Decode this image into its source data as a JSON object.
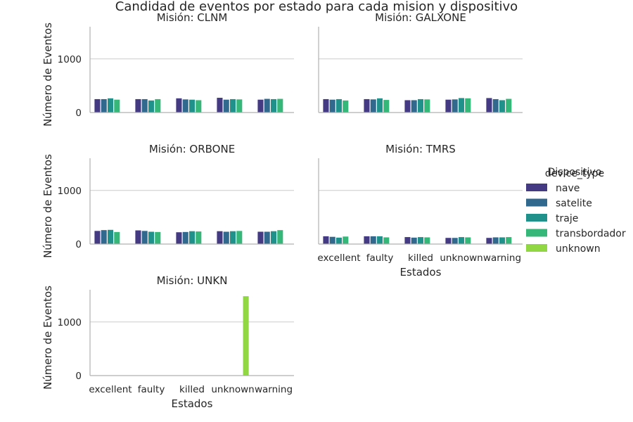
{
  "chart_data": {
    "type": "bar",
    "title": "Candidad de eventos por estado para cada mision y dispositivo",
    "xlabel": "Estados",
    "ylabel": "Número de Eventos",
    "categories": [
      "excellent",
      "faulty",
      "killed",
      "unknown",
      "warning"
    ],
    "ylim": [
      0,
      1600
    ],
    "yticks": [
      0,
      1000
    ],
    "grid": "horizontal",
    "legend": {
      "title": "Dispositivo",
      "overlap_title": "device_type",
      "placement": "right",
      "entries": [
        "nave",
        "satelite",
        "traje",
        "transbordador",
        "unknown"
      ]
    },
    "colors": {
      "nave": "#443983",
      "satelite": "#31688e",
      "traje": "#21918c",
      "transbordador": "#35b779",
      "unknown": "#90d743"
    },
    "panels": [
      {
        "title": "Misión: CLNM",
        "series": [
          {
            "name": "nave",
            "values": [
              250,
              250,
              265,
              275,
              240
            ]
          },
          {
            "name": "satelite",
            "values": [
              250,
              250,
              245,
              240,
              255
            ]
          },
          {
            "name": "traje",
            "values": [
              265,
              225,
              240,
              250,
              250
            ]
          },
          {
            "name": "transbordador",
            "values": [
              240,
              250,
              230,
              245,
              255
            ]
          },
          {
            "name": "unknown",
            "values": [
              0,
              0,
              0,
              0,
              0
            ]
          }
        ]
      },
      {
        "title": "Misión: GALXONE",
        "series": [
          {
            "name": "nave",
            "values": [
              250,
              250,
              230,
              240,
              270
            ]
          },
          {
            "name": "satelite",
            "values": [
              240,
              245,
              230,
              245,
              250
            ]
          },
          {
            "name": "traje",
            "values": [
              250,
              265,
              250,
              270,
              230
            ]
          },
          {
            "name": "transbordador",
            "values": [
              225,
              235,
              245,
              265,
              255
            ]
          },
          {
            "name": "unknown",
            "values": [
              0,
              0,
              0,
              0,
              0
            ]
          }
        ]
      },
      {
        "title": "Misión: ORBONE",
        "series": [
          {
            "name": "nave",
            "values": [
              245,
              255,
              220,
              240,
              230
            ]
          },
          {
            "name": "satelite",
            "values": [
              260,
              245,
              225,
              230,
              230
            ]
          },
          {
            "name": "traje",
            "values": [
              265,
              230,
              240,
              240,
              240
            ]
          },
          {
            "name": "transbordador",
            "values": [
              225,
              225,
              235,
              245,
              260
            ]
          },
          {
            "name": "unknown",
            "values": [
              0,
              0,
              0,
              0,
              0
            ]
          }
        ]
      },
      {
        "title": "Misión: TMRS",
        "series": [
          {
            "name": "nave",
            "values": [
              145,
              145,
              130,
              115,
              115
            ]
          },
          {
            "name": "satelite",
            "values": [
              135,
              145,
              120,
              115,
              125
            ]
          },
          {
            "name": "traje",
            "values": [
              120,
              145,
              130,
              130,
              125
            ]
          },
          {
            "name": "transbordador",
            "values": [
              140,
              125,
              125,
              125,
              130
            ]
          },
          {
            "name": "unknown",
            "values": [
              0,
              0,
              0,
              0,
              0
            ]
          }
        ]
      },
      {
        "title": "Misión: UNKN",
        "series": [
          {
            "name": "nave",
            "values": [
              0,
              0,
              0,
              0,
              0
            ]
          },
          {
            "name": "satelite",
            "values": [
              0,
              0,
              0,
              0,
              0
            ]
          },
          {
            "name": "traje",
            "values": [
              0,
              0,
              0,
              0,
              0
            ]
          },
          {
            "name": "transbordador",
            "values": [
              0,
              0,
              0,
              0,
              0
            ]
          },
          {
            "name": "unknown",
            "values": [
              0,
              0,
              0,
              1480,
              0
            ]
          }
        ]
      }
    ]
  }
}
